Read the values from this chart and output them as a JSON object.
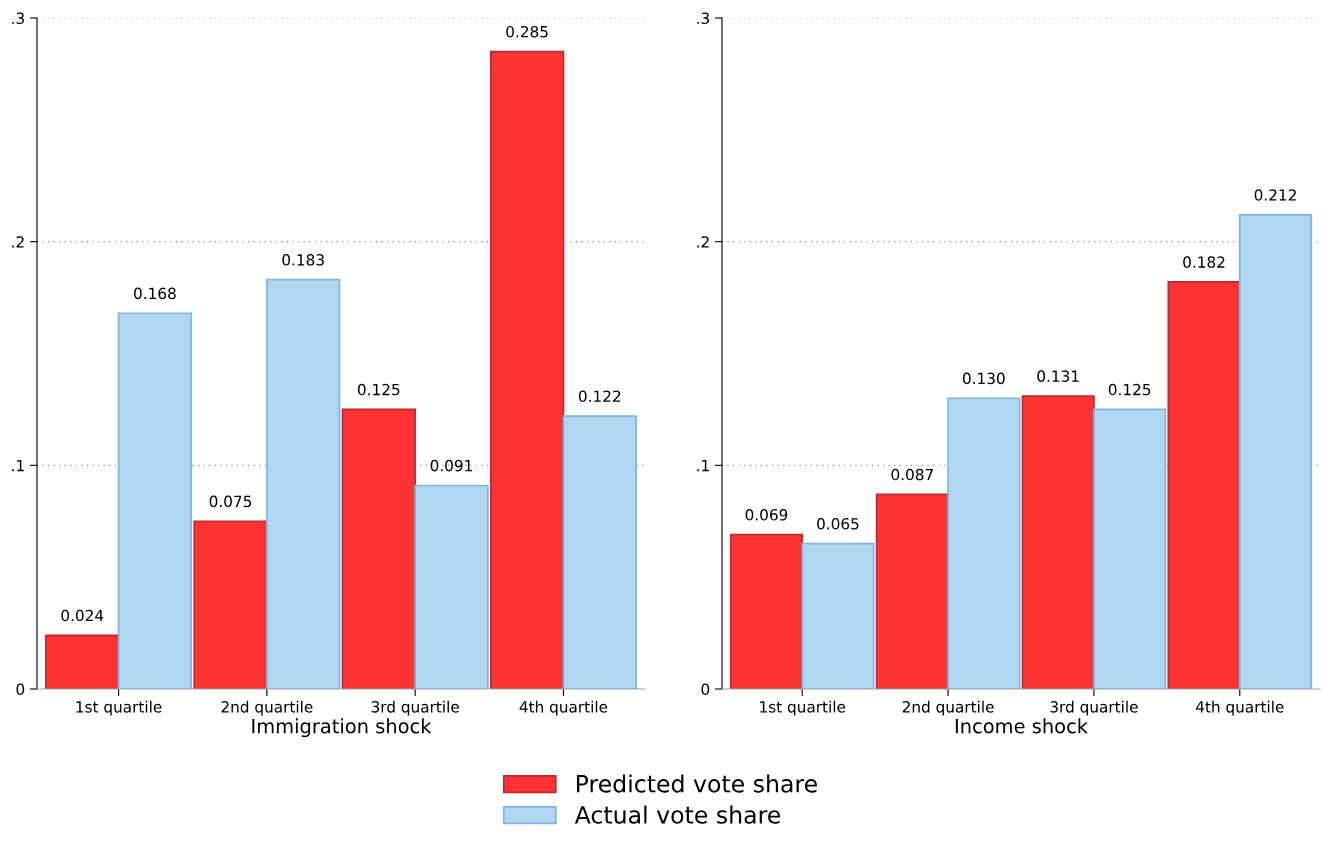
{
  "chart_data": [
    {
      "type": "bar",
      "xlabel": "Immigration shock",
      "categories": [
        "1st quartile",
        "2nd quartile",
        "3rd quartile",
        "4th quartile"
      ],
      "ylim": [
        0,
        0.3
      ],
      "yticks": [
        {
          "value": 0,
          "label": "0"
        },
        {
          "value": 0.1,
          "label": ".1"
        },
        {
          "value": 0.2,
          "label": ".2"
        },
        {
          "value": 0.3,
          "label": ".3"
        }
      ],
      "grid": "y",
      "legend": "bottom",
      "series": [
        {
          "name": "Predicted vote share",
          "color": "#ff3333",
          "values": [
            0.024,
            0.075,
            0.125,
            0.285
          ],
          "value_labels": [
            "0.024",
            "0.075",
            "0.125",
            "0.285"
          ]
        },
        {
          "name": "Actual vote share",
          "color": "#b0d6f0",
          "values": [
            0.168,
            0.183,
            0.091,
            0.122
          ],
          "value_labels": [
            "0.168",
            "0.183",
            "0.091",
            "0.122"
          ]
        }
      ]
    },
    {
      "type": "bar",
      "xlabel": "Income shock",
      "categories": [
        "1st quartile",
        "2nd quartile",
        "3rd quartile",
        "4th quartile"
      ],
      "ylim": [
        0,
        0.3
      ],
      "yticks": [
        {
          "value": 0,
          "label": "0"
        },
        {
          "value": 0.1,
          "label": ".1"
        },
        {
          "value": 0.2,
          "label": ".2"
        },
        {
          "value": 0.3,
          "label": ".3"
        }
      ],
      "grid": "y",
      "series": [
        {
          "color": "#ff3333",
          "values": [
            0.069,
            0.087,
            0.131,
            0.182
          ],
          "value_labels": [
            "0.069",
            "0.087",
            "0.131",
            "0.182"
          ]
        },
        {
          "color": "#b0d6f0",
          "values": [
            0.065,
            0.13,
            0.125,
            0.212
          ],
          "value_labels": [
            "0.065",
            "0.130",
            "0.125",
            "0.212"
          ]
        }
      ]
    }
  ]
}
